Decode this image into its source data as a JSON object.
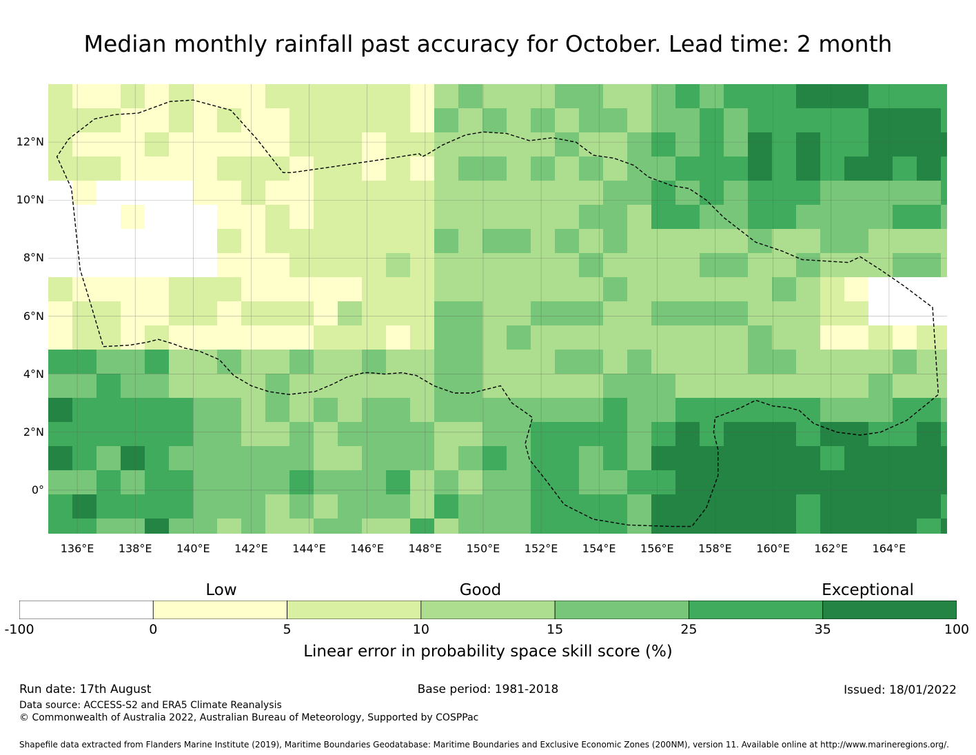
{
  "title": "Median monthly rainfall past accuracy for October. Lead time: 2 month",
  "map": {
    "lon_range": [
      135,
      166
    ],
    "lat_range": [
      -1.5,
      14
    ],
    "cell_size_deg": 0.83,
    "lon_ticks": [
      {
        "value": 136,
        "label": "136°E"
      },
      {
        "value": 138,
        "label": "138°E"
      },
      {
        "value": 140,
        "label": "140°E"
      },
      {
        "value": 142,
        "label": "142°E"
      },
      {
        "value": 144,
        "label": "144°E"
      },
      {
        "value": 146,
        "label": "146°E"
      },
      {
        "value": 148,
        "label": "148°E"
      },
      {
        "value": 150,
        "label": "150°E"
      },
      {
        "value": 152,
        "label": "152°E"
      },
      {
        "value": 154,
        "label": "154°E"
      },
      {
        "value": 156,
        "label": "156°E"
      },
      {
        "value": 158,
        "label": "158°E"
      },
      {
        "value": 160,
        "label": "160°E"
      },
      {
        "value": 162,
        "label": "162°E"
      },
      {
        "value": 164,
        "label": "164°E"
      }
    ],
    "lat_ticks": [
      {
        "value": 12,
        "label": "12°N"
      },
      {
        "value": 10,
        "label": "10°N"
      },
      {
        "value": 8,
        "label": "8°N"
      },
      {
        "value": 6,
        "label": "6°N"
      },
      {
        "value": 4,
        "label": "4°N"
      },
      {
        "value": 2,
        "label": "2°N"
      },
      {
        "value": 0,
        "label": "0°"
      }
    ],
    "grid_lines": true,
    "eez_boundary": [
      [
        138.1,
        13.0
      ],
      [
        139.2,
        13.4
      ],
      [
        140.0,
        13.45
      ],
      [
        141.3,
        13.1
      ],
      [
        142.2,
        12.1
      ],
      [
        143.1,
        10.95
      ],
      [
        143.4,
        10.95
      ],
      [
        144.8,
        11.15
      ],
      [
        146.5,
        11.4
      ],
      [
        147.8,
        11.6
      ],
      [
        147.9,
        11.5
      ],
      [
        148.1,
        11.6
      ],
      [
        148.6,
        11.9
      ],
      [
        149.4,
        12.25
      ],
      [
        150.0,
        12.35
      ],
      [
        150.8,
        12.3
      ],
      [
        151.6,
        12.05
      ],
      [
        152.4,
        12.15
      ],
      [
        153.2,
        12.0
      ],
      [
        153.8,
        11.55
      ],
      [
        154.5,
        11.45
      ],
      [
        155.2,
        11.2
      ],
      [
        155.7,
        10.8
      ],
      [
        156.5,
        10.5
      ],
      [
        157.1,
        10.4
      ],
      [
        157.7,
        10.0
      ],
      [
        158.3,
        9.4
      ],
      [
        159.4,
        8.55
      ],
      [
        160.3,
        8.25
      ],
      [
        161.0,
        7.95
      ],
      [
        162.6,
        7.85
      ],
      [
        163.0,
        8.05
      ],
      [
        163.7,
        7.6
      ],
      [
        164.5,
        7.05
      ],
      [
        165.5,
        6.3
      ],
      [
        165.6,
        4.8
      ],
      [
        165.7,
        3.3
      ],
      [
        165.4,
        3.05
      ],
      [
        164.6,
        2.4
      ],
      [
        163.7,
        2.0
      ],
      [
        163.0,
        1.9
      ],
      [
        162.2,
        2.0
      ],
      [
        161.4,
        2.3
      ],
      [
        160.9,
        2.75
      ],
      [
        160.5,
        2.85
      ],
      [
        160.0,
        2.9
      ],
      [
        159.4,
        3.1
      ],
      [
        158.9,
        2.85
      ],
      [
        158.4,
        2.65
      ],
      [
        158.0,
        2.5
      ],
      [
        157.95,
        2.0
      ],
      [
        158.1,
        1.4
      ],
      [
        158.1,
        0.5
      ],
      [
        157.7,
        -0.6
      ],
      [
        157.2,
        -1.25
      ],
      [
        156.5,
        -1.25
      ],
      [
        155.0,
        -1.2
      ],
      [
        153.8,
        -1.0
      ],
      [
        152.8,
        -0.5
      ],
      [
        152.2,
        0.3
      ],
      [
        151.6,
        1.05
      ],
      [
        151.45,
        1.6
      ],
      [
        151.7,
        2.5
      ],
      [
        151.5,
        2.65
      ],
      [
        151.0,
        3.0
      ],
      [
        150.6,
        3.6
      ],
      [
        150.2,
        3.5
      ],
      [
        149.6,
        3.35
      ],
      [
        149.0,
        3.35
      ],
      [
        148.3,
        3.6
      ],
      [
        147.7,
        3.95
      ],
      [
        147.2,
        4.05
      ],
      [
        146.6,
        4.0
      ],
      [
        146.1,
        4.05
      ],
      [
        145.9,
        4.05
      ],
      [
        145.3,
        3.9
      ],
      [
        144.8,
        3.65
      ],
      [
        144.2,
        3.4
      ],
      [
        143.3,
        3.3
      ],
      [
        142.6,
        3.4
      ],
      [
        142.0,
        3.6
      ],
      [
        141.4,
        3.95
      ],
      [
        140.9,
        4.5
      ],
      [
        140.2,
        4.8
      ],
      [
        139.7,
        4.9
      ],
      [
        139.3,
        5.05
      ],
      [
        138.8,
        5.2
      ],
      [
        138.4,
        5.1
      ],
      [
        137.8,
        5.0
      ],
      [
        136.9,
        4.95
      ],
      [
        136.5,
        6.3
      ],
      [
        136.1,
        7.6
      ],
      [
        135.8,
        10.4
      ],
      [
        135.3,
        11.5
      ],
      [
        135.7,
        12.1
      ],
      [
        136.6,
        12.8
      ],
      [
        137.3,
        12.95
      ],
      [
        138.1,
        13.0
      ]
    ]
  },
  "legend": {
    "categories": [
      "Low",
      "Good",
      "Exceptional"
    ],
    "bins": [
      {
        "from": -100,
        "to": 0,
        "color": "#ffffff"
      },
      {
        "from": 0,
        "to": 5,
        "color": "#ffffcc"
      },
      {
        "from": 5,
        "to": 10,
        "color": "#d9f0a3"
      },
      {
        "from": 10,
        "to": 15,
        "color": "#addd8e"
      },
      {
        "from": 15,
        "to": 25,
        "color": "#78c679"
      },
      {
        "from": 25,
        "to": 35,
        "color": "#41ab5d"
      },
      {
        "from": 35,
        "to": 100,
        "color": "#238443"
      }
    ],
    "tick_labels": [
      "-100",
      "0",
      "5",
      "10",
      "15",
      "25",
      "35",
      "100"
    ],
    "label": "Linear error in probability space skill score (%)"
  },
  "footer": {
    "run_date": "Run date: 17th August",
    "base_period": "Base period: 1981-2018",
    "issued": "Issued: 18/01/2022",
    "data_source": "Data source: ACCESS-S2 and ERA5 Climate Reanalysis",
    "copyright": "© Commonwealth of Australia 2022, Australian Bureau of Meteorology, Supported by COSPPac",
    "shapefile": "Shapefile data extracted from Flanders Marine Institute (2019), Maritime Boundaries Geodatabase: Maritime Boundaries and Exclusive Economic Zones (200NM), version 11. Available online at http://www.marineregions.org/."
  }
}
